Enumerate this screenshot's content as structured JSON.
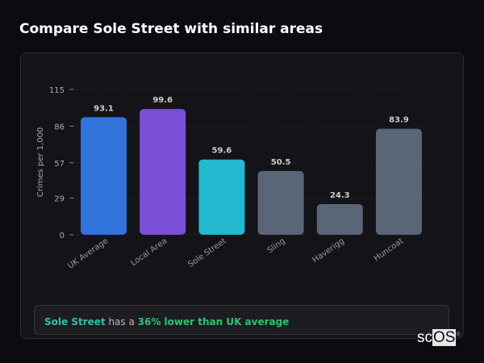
{
  "header": {
    "title": "Compare Sole Street with similar areas"
  },
  "chart_data": {
    "type": "bar",
    "categories": [
      "UK Average",
      "Local Area",
      "Sole Street",
      "Sling",
      "Haverigg",
      "Huncoat"
    ],
    "values": [
      93.1,
      99.6,
      59.6,
      50.5,
      24.3,
      83.9
    ],
    "colors": [
      "#3273dc",
      "#7b4fd6",
      "#22b8cf",
      "#5a6578",
      "#5a6578",
      "#5a6578"
    ],
    "ylabel": "Crimes per 1,000",
    "yticks": [
      0,
      29,
      57,
      86,
      115
    ],
    "ylim": [
      0,
      115
    ],
    "grid": true
  },
  "summary": {
    "area": "Sole Street",
    "middle": " has a ",
    "comparison": "36% lower than UK average"
  },
  "logo": {
    "text_sc": "sc",
    "text_os": "OS",
    "mark": "®"
  }
}
